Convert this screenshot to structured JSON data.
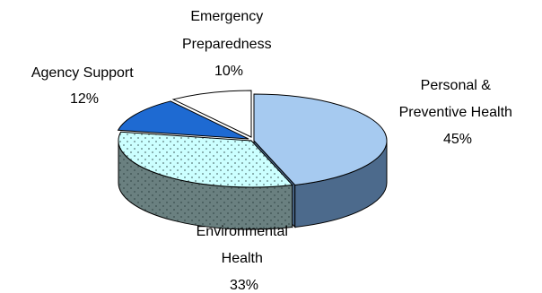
{
  "chart_data": {
    "type": "pie",
    "style": "3d-exploded",
    "slices": [
      {
        "label_lines": [
          "Personal &",
          "Preventive Health"
        ],
        "percent_label": "45%",
        "value": 45,
        "top_color": "#a6caf0",
        "side_color": "#4c6a8c",
        "pattern": "none"
      },
      {
        "label_lines": [
          "Environmental",
          "Health"
        ],
        "percent_label": "33%",
        "value": 33,
        "top_color": "#ccffff",
        "side_color": "#6a8080",
        "pattern": "dots"
      },
      {
        "label_lines": [
          "Agency Support"
        ],
        "percent_label": "12%",
        "value": 12,
        "top_color": "#1e6ad2",
        "side_color": "#123e78",
        "pattern": "none"
      },
      {
        "label_lines": [
          "Emergency",
          "Preparedness"
        ],
        "percent_label": "10%",
        "value": 10,
        "top_color": "#ffffff",
        "side_color": "#d0d0d0",
        "pattern": "none"
      }
    ],
    "outline_color": "#000000",
    "legend": "none"
  }
}
